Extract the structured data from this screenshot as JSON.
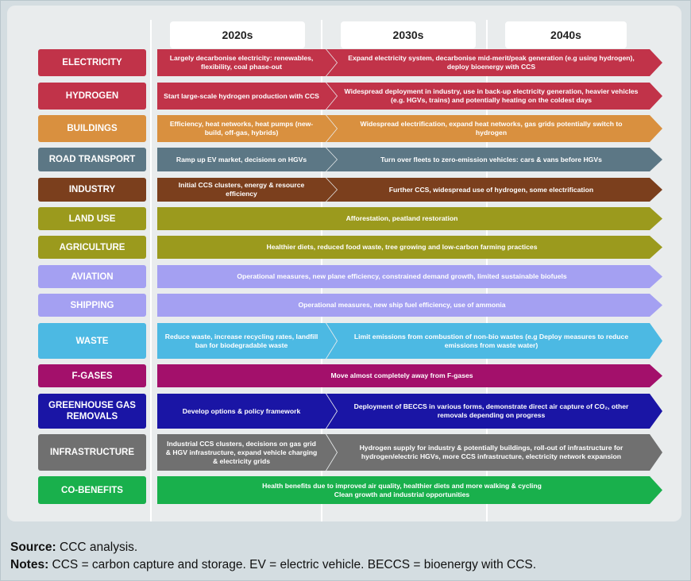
{
  "decades": [
    "2020s",
    "2030s",
    "2040s"
  ],
  "rows": [
    {
      "label": "ELECTRICITY",
      "color": "#c13349",
      "p1": "Largely decarbonise electricity: renewables, flexibility, coal phase-out",
      "p2": "Expand electricity system, decarbonise mid-merit/peak generation (e.g using hydrogen), deploy bioenergy with CCS"
    },
    {
      "label": "HYDROGEN",
      "color": "#c13349",
      "p1": "Start large-scale hydrogen production with CCS",
      "p2": "Widespread deployment in industry, use in back-up electricity generation, heavier vehicles (e.g. HGVs, trains) and potentially heating on the coldest days"
    },
    {
      "label": "BUILDINGS",
      "color": "#d9903f",
      "p1": "Efficiency, heat networks, heat pumps (new-build, off-gas, hybrids)",
      "p2": "Widespread electrification, expand heat networks, gas grids potentially switch to hydrogen"
    },
    {
      "label": "ROAD TRANSPORT",
      "color": "#5c7785",
      "p1": "Ramp up EV market, decisions on HGVs",
      "p2": "Turn over fleets to zero-emission vehicles:  cars & vans  before HGVs"
    },
    {
      "label": "INDUSTRY",
      "color": "#7b3f1d",
      "p1": "Initial CCS clusters, energy & resource efficiency",
      "p2": "Further CCS, widespread use of hydrogen, some electrification"
    },
    {
      "label": "LAND USE",
      "color": "#9b9a1d",
      "full": "Afforestation, peatland restoration"
    },
    {
      "label": "AGRICULTURE",
      "color": "#9b9a1d",
      "full": "Healthier diets, reduced food waste, tree growing and low-carbon farming practices"
    },
    {
      "label": "AVIATION",
      "color": "#a4a0f2",
      "full": "Operational measures, new plane efficiency, constrained demand growth, limited sustainable biofuels"
    },
    {
      "label": "SHIPPING",
      "color": "#a4a0f2",
      "full": "Operational measures, new ship fuel efficiency, use of ammonia"
    },
    {
      "label": "WASTE",
      "color": "#4cb9e3",
      "p1": "Reduce waste, increase recycling rates, landfill ban for biodegradable waste",
      "p2": "Limit emissions from combustion of non-bio wastes (e.g Deploy measures to reduce emissions from waste water)"
    },
    {
      "label": "F-GASES",
      "color": "#a3106b",
      "full": "Move almost completely away from F-gases"
    },
    {
      "label": "GREENHOUSE GAS REMOVALS",
      "color": "#1a15a5",
      "p1": "Develop options & policy framework",
      "p2": "Deployment of BECCS in various forms, demonstrate direct air capture of CO₂, other removals depending on progress"
    },
    {
      "label": "INFRASTRUCTURE",
      "color": "#707070",
      "p1": "Industrial CCS clusters, decisions on gas grid & HGV infrastructure, expand vehicle charging & electricity grids",
      "p2": "Hydrogen supply for industry & potentially buildings, roll-out of infrastructure for hydrogen/electric HGVs, more CCS infrastructure, electricity network expansion"
    },
    {
      "label": "CO-BENEFITS",
      "color": "#19b04c",
      "full": "Health benefits due to improved air quality, healthier diets and more walking & cycling\nClean growth and industrial opportunities"
    }
  ],
  "footer": {
    "source_label": "Source:",
    "source_text": "CCC analysis.",
    "notes_label": "Notes:",
    "notes_text": "CCS = carbon capture and storage. EV = electric vehicle. BECCS = bioenergy with CCS."
  }
}
